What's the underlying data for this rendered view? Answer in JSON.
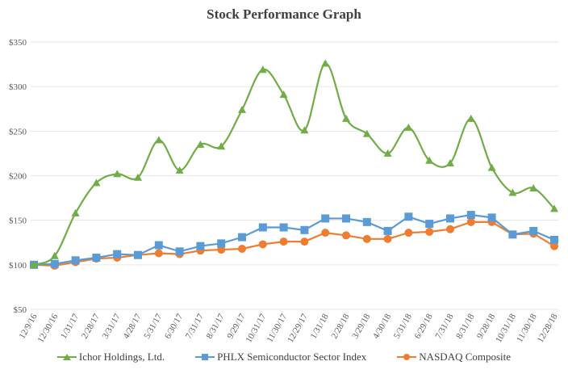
{
  "chart_data": {
    "type": "line",
    "title": "Stock Performance Graph",
    "xlabel": "",
    "ylabel": "",
    "ylim": [
      50,
      350
    ],
    "yticks": [
      "$50",
      "$100",
      "$150",
      "$200",
      "$250",
      "$300",
      "$350"
    ],
    "ytick_values": [
      50,
      100,
      150,
      200,
      250,
      300,
      350
    ],
    "grid": true,
    "legend_position": "bottom",
    "categories": [
      "12/9/16",
      "12/30/16",
      "1/31/17",
      "2/28/17",
      "3/31/17",
      "4/28/17",
      "5/31/17",
      "6/30/17",
      "7/31/17",
      "8/31/17",
      "9/29/17",
      "10/31/17",
      "11/30/17",
      "12/29/17",
      "1/31/18",
      "2/28/18",
      "3/29/18",
      "4/30/18",
      "5/31/18",
      "6/29/18",
      "7/31/18",
      "8/31/18",
      "9/28/18",
      "10/31/18",
      "11/30/18",
      "12/28/18"
    ],
    "series": [
      {
        "name": "Ichor Holdings, Ltd.",
        "color": "#70AD47",
        "marker": "triangle",
        "smooth": true,
        "values": [
          100,
          110,
          158,
          192,
          202,
          198,
          240,
          206,
          235,
          233,
          274,
          319,
          291,
          251,
          326,
          264,
          247,
          225,
          254,
          217,
          214,
          264,
          209,
          181,
          186,
          163
        ]
      },
      {
        "name": "PHLX Semiconductor Sector Index",
        "color": "#5B9BD5",
        "marker": "square",
        "smooth": false,
        "values": [
          100,
          101,
          105,
          108,
          112,
          111,
          122,
          115,
          121,
          124,
          131,
          142,
          142,
          139,
          152,
          152,
          148,
          138,
          154,
          146,
          152,
          156,
          153,
          134,
          138,
          128
        ]
      },
      {
        "name": "NASDAQ Composite",
        "color": "#ED7D31",
        "marker": "circle",
        "smooth": false,
        "values": [
          100,
          99,
          103,
          107,
          108,
          111,
          113,
          112,
          116,
          117,
          118,
          123,
          126,
          126,
          136,
          133,
          129,
          129,
          136,
          137,
          140,
          148,
          148,
          134,
          135,
          121
        ]
      }
    ]
  }
}
